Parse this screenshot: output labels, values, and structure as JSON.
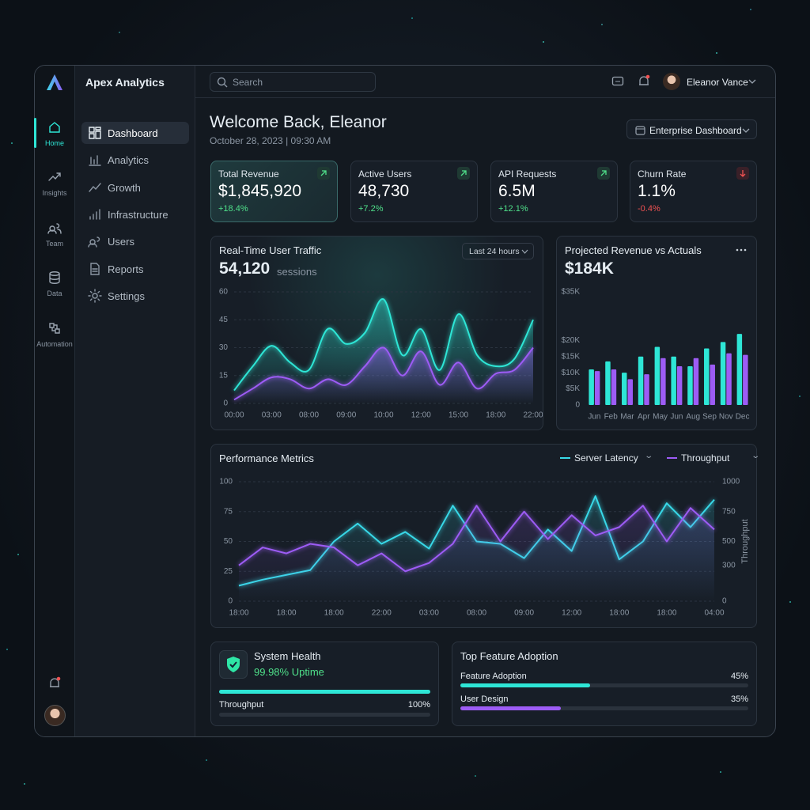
{
  "app_name": "Apex Analytics",
  "rail": [
    "Home",
    "Insights",
    "Team",
    "Data",
    "Automation"
  ],
  "nav": [
    "Dashboard",
    "Analytics",
    "Growth",
    "Infrastructure",
    "Users",
    "Reports",
    "Settings"
  ],
  "search_placeholder": "Search",
  "user_name": "Eleanor Vance",
  "welcome": {
    "title": "Welcome Back, Eleanor",
    "date": "October 28, 2023 | 09:30 AM"
  },
  "dashboard_menu": "Enterprise Dashboard",
  "kpis": [
    {
      "label": "Total Revenue",
      "value": "$1,845,920",
      "change": "+18.4%"
    },
    {
      "label": "Active Users",
      "value": "48,730",
      "change": "+7.2%"
    },
    {
      "label": "API Requests",
      "value": "6.5M",
      "change": "+12.1%"
    },
    {
      "label": "Churn Rate",
      "value": "1.1%",
      "change": "-0.4%"
    }
  ],
  "traffic": {
    "title": "Real-Time User Traffic",
    "total": "54,120",
    "unit": "sessions",
    "range": "Last 24 hours",
    "chart": {
      "type": "line",
      "curve": "smooth",
      "fill": true,
      "grid": true,
      "categories": [
        "00:00",
        null,
        "03:00",
        null,
        "08:00",
        null,
        "09:00",
        null,
        "10:00",
        null,
        "12:00",
        null,
        "15:00",
        null,
        "18:00",
        null,
        "22:00"
      ],
      "series": [
        {
          "color": "#2ee6d6",
          "values": [
            7,
            20,
            31,
            22,
            18,
            40,
            32,
            38,
            56,
            26,
            40,
            18,
            48,
            26,
            20,
            24,
            45
          ]
        },
        {
          "color": "#9d5cf5",
          "values": [
            2,
            8,
            14,
            13,
            8,
            13,
            10,
            20,
            30,
            15,
            28,
            10,
            22,
            8,
            16,
            18,
            30
          ]
        }
      ],
      "ylim": [
        0,
        60
      ],
      "yticks": [
        0,
        15,
        30,
        45,
        60
      ]
    }
  },
  "revenue": {
    "title": "Projected Revenue vs Actuals",
    "total": "$184K",
    "chart": {
      "type": "bar",
      "grid": false,
      "categories": [
        "Jun",
        "Feb",
        "Mar",
        "Apr",
        "May",
        "Jun",
        "Aug",
        "Sep",
        "Nov",
        "Dec"
      ],
      "series": [
        {
          "color": "#2ee6d6",
          "values": [
            11000,
            13500,
            10000,
            15000,
            18000,
            15000,
            12000,
            17500,
            19500,
            22000
          ]
        },
        {
          "color": "#9d5cf5",
          "values": [
            10500,
            11000,
            8000,
            9500,
            14500,
            12000,
            14500,
            12500,
            16000,
            15500
          ]
        }
      ],
      "ylim": [
        0,
        35000
      ],
      "yticks": [
        0,
        {
          "value": 5000,
          "label": "$5K"
        },
        {
          "value": 10000,
          "label": "$10K"
        },
        {
          "value": 15000,
          "label": "$15K"
        },
        {
          "value": 20000,
          "label": "$20K"
        },
        {
          "value": 35000,
          "label": "$35K"
        }
      ]
    }
  },
  "performance": {
    "title": "Performance Metrics",
    "chart": {
      "type": "line",
      "fill": true,
      "grid": true,
      "categories": [
        "18:00",
        null,
        "18:00",
        null,
        "18:00",
        null,
        "22:00",
        null,
        "03:00",
        null,
        "08:00",
        null,
        "09:00",
        null,
        "12:00",
        null,
        "18:00",
        null,
        "18:00",
        null,
        "04:00"
      ],
      "series": [
        {
          "name": "Server Latency",
          "color": "#38d9e8",
          "values": [
            13,
            18,
            22,
            26,
            50,
            65,
            48,
            58,
            44,
            80,
            50,
            48,
            36,
            60,
            42,
            88,
            35,
            50,
            82,
            62,
            85
          ]
        },
        {
          "name": "Throughput",
          "color": "#9d5cf5",
          "axis": "y2",
          "values": [
            300,
            450,
            400,
            480,
            450,
            300,
            400,
            250,
            320,
            480,
            800,
            500,
            750,
            520,
            720,
            550,
            620,
            800,
            500,
            780,
            600
          ]
        }
      ],
      "ylim": [
        0,
        100
      ],
      "yticks": [
        0,
        25,
        50,
        75,
        100
      ],
      "y2lim": [
        0,
        1000
      ],
      "y2ticks": [
        0,
        300,
        500,
        750,
        1000
      ],
      "y2label": "Throughput"
    }
  },
  "health": {
    "title": "System Health",
    "status": "99.98% Uptime",
    "meter": {
      "label": "Throughput",
      "value": 100,
      "value_label": "100%"
    }
  },
  "adoption": {
    "title": "Top Feature Adoption",
    "items": [
      {
        "label": "Feature Adoption",
        "value": 45,
        "value_label": "45%",
        "color": "#2ee6d6"
      },
      {
        "label": "User Design",
        "value": 35,
        "value_label": "35%",
        "color": "#9d5cf5"
      }
    ]
  }
}
